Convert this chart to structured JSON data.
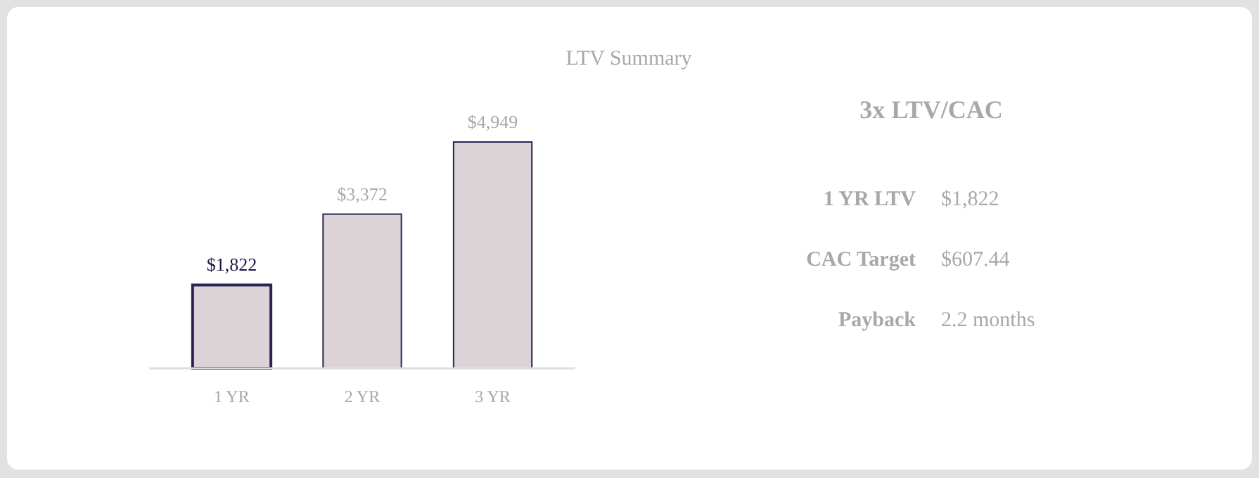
{
  "chart_data": [
    {
      "type": "bar",
      "title": "LTV Summary",
      "categories": [
        "1 YR",
        "2 YR",
        "3 YR"
      ],
      "values": [
        1822,
        3372,
        4949
      ],
      "value_labels": [
        "$1,822",
        "$3,372",
        "$4,949"
      ],
      "color": "#dcd3d7"
    },
    {
      "type": "other",
      "title": "3x LTV/CAC",
      "annotations": [
        "1 YR LTV",
        "$1,822",
        "CAC Target",
        "$607.44",
        "Payback",
        "2.2 months"
      ]
    }
  ]
}
